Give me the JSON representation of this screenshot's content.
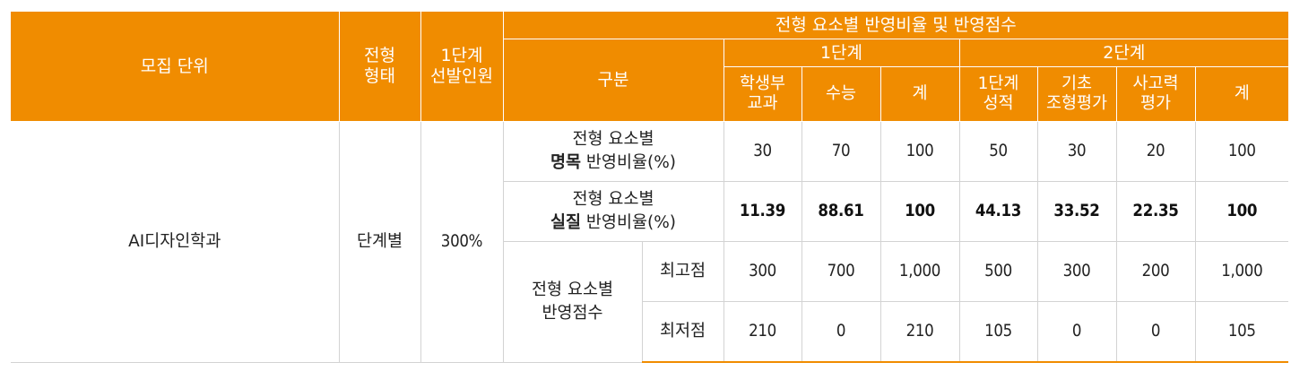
{
  "header": {
    "unit": "모집 단위",
    "type": "전형\n형태",
    "stage1_selection": "1단계\n선발인원",
    "group_title": "전형 요소별 반영비율 및 반영점수",
    "category": "구분",
    "stage1": "1단계",
    "stage2": "2단계",
    "stage1_cols": [
      "학생부\n교과",
      "수능",
      "계"
    ],
    "stage2_cols": [
      "1단계\n성적",
      "기초\n조형평가",
      "사고력\n평가",
      "계"
    ]
  },
  "row": {
    "unit": "AI디자인학과",
    "type": "단계별",
    "selection": "300%"
  },
  "rows": {
    "nominal": {
      "label_line1": "전형 요소별",
      "label_bold": "명목",
      "label_rest": " 반영비율(%)",
      "values": [
        "30",
        "70",
        "100",
        "50",
        "30",
        "20",
        "100"
      ]
    },
    "actual": {
      "label_line1": "전형 요소별",
      "label_bold": "실질",
      "label_rest": " 반영비율(%)",
      "values": [
        "11.39",
        "88.61",
        "100",
        "44.13",
        "33.52",
        "22.35",
        "100"
      ]
    },
    "score_label_line1": "전형 요소별",
    "score_label_line2": "반영점수",
    "max": {
      "label": "최고점",
      "values": [
        "300",
        "700",
        "1,000",
        "500",
        "300",
        "200",
        "1,000"
      ]
    },
    "min": {
      "label": "최저점",
      "values": [
        "210",
        "0",
        "210",
        "105",
        "0",
        "0",
        "105"
      ]
    }
  },
  "colors": {
    "header_bg": "#f08c00",
    "header_text": "#ffffff",
    "grid": "#d3d3d3"
  }
}
